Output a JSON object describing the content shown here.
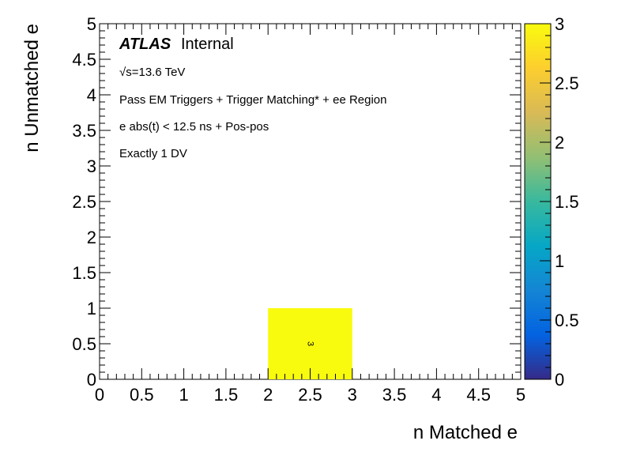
{
  "chart_data": {
    "type": "heatmap",
    "xlabel": "n Matched e",
    "ylabel": "n Unmatched e",
    "xlim": [
      0,
      5
    ],
    "ylim": [
      0,
      5
    ],
    "x_ticks": [
      "0",
      "0.5",
      "1",
      "1.5",
      "2",
      "2.5",
      "3",
      "3.5",
      "4",
      "4.5",
      "5"
    ],
    "y_ticks": [
      "0",
      "0.5",
      "1",
      "1.5",
      "2",
      "2.5",
      "3",
      "3.5",
      "4",
      "4.5",
      "5"
    ],
    "colorbar": {
      "range": [
        0,
        3
      ],
      "ticks": [
        "0",
        "0.5",
        "1",
        "1.5",
        "2",
        "2.5",
        "3"
      ],
      "palette": [
        "#352a87",
        "#0363e1",
        "#1485d4",
        "#06a7c6",
        "#38b99e",
        "#92bf73",
        "#d9ba56",
        "#fcce2e",
        "#f9fb0e"
      ]
    },
    "cells": [
      {
        "x0": 2,
        "x1": 3,
        "y0": 0,
        "y1": 1,
        "value": 3,
        "label": "3"
      }
    ],
    "annotations": {
      "atlas": "ATLAS",
      "atlas_status": "Internal",
      "energy": "√s=13.6 TeV",
      "line1": "Pass EM Triggers + Trigger Matching* + ee Region",
      "line2": "e abs(t) < 12.5 ns + Pos-pos",
      "line3": "Exactly 1 DV"
    },
    "grid": false
  }
}
